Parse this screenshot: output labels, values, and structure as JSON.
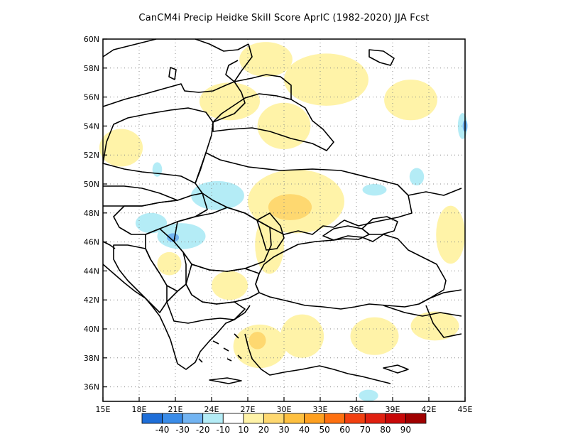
{
  "title": "CanCM4i Precip Heidke Skill Score AprIC (1982-2020) JJA Fcst",
  "map": {
    "lon_range": [
      15,
      45
    ],
    "lat_range": [
      35,
      60
    ],
    "lon_ticks": [
      "15E",
      "18E",
      "21E",
      "24E",
      "27E",
      "30E",
      "33E",
      "36E",
      "39E",
      "42E",
      "45E"
    ],
    "lat_ticks": [
      "60N",
      "58N",
      "56N",
      "54N",
      "52N",
      "50N",
      "48N",
      "46N",
      "44N",
      "42N",
      "40N",
      "38N",
      "36N"
    ],
    "regions": [
      {
        "cat": 1,
        "lon": 28.5,
        "lat": 58.6,
        "rx": 2.2,
        "ry": 1.2
      },
      {
        "cat": 1,
        "lon": 25.5,
        "lat": 55.7,
        "rx": 2.5,
        "ry": 1.3
      },
      {
        "cat": 1,
        "lon": 33.5,
        "lat": 57.2,
        "rx": 3.5,
        "ry": 1.8
      },
      {
        "cat": 1,
        "lon": 40.5,
        "lat": 55.8,
        "rx": 2.2,
        "ry": 1.4
      },
      {
        "cat": 1,
        "lon": 30.0,
        "lat": 54.0,
        "rx": 2.2,
        "ry": 1.6
      },
      {
        "cat": 1,
        "lon": 16.5,
        "lat": 52.5,
        "rx": 1.8,
        "ry": 1.3
      },
      {
        "cat": 1,
        "lon": 31.0,
        "lat": 48.8,
        "rx": 4.0,
        "ry": 2.2
      },
      {
        "cat": 2,
        "lon": 30.5,
        "lat": 48.4,
        "rx": 1.8,
        "ry": 0.9
      },
      {
        "cat": 1,
        "lon": 28.8,
        "lat": 45.8,
        "rx": 1.2,
        "ry": 2.0
      },
      {
        "cat": 1,
        "lon": 25.5,
        "lat": 43.0,
        "rx": 1.5,
        "ry": 1.0
      },
      {
        "cat": 1,
        "lon": 28.0,
        "lat": 38.8,
        "rx": 2.2,
        "ry": 1.5
      },
      {
        "cat": 2,
        "lon": 27.8,
        "lat": 39.2,
        "rx": 0.7,
        "ry": 0.6
      },
      {
        "cat": 1,
        "lon": 31.5,
        "lat": 39.5,
        "rx": 1.8,
        "ry": 1.5
      },
      {
        "cat": 1,
        "lon": 37.5,
        "lat": 39.5,
        "rx": 2.0,
        "ry": 1.3
      },
      {
        "cat": 1,
        "lon": 42.5,
        "lat": 40.2,
        "rx": 2.0,
        "ry": 1.0
      },
      {
        "cat": 1,
        "lon": 43.8,
        "lat": 46.5,
        "rx": 1.2,
        "ry": 2.0
      },
      {
        "cat": 1,
        "lon": 20.5,
        "lat": 44.5,
        "rx": 1.0,
        "ry": 0.8
      },
      {
        "cat": -1,
        "lon": 24.5,
        "lat": 49.2,
        "rx": 2.2,
        "ry": 1.0
      },
      {
        "cat": -1,
        "lon": 21.5,
        "lat": 46.4,
        "rx": 2.0,
        "ry": 0.9
      },
      {
        "cat": -1,
        "lon": 19.0,
        "lat": 47.3,
        "rx": 1.3,
        "ry": 0.7
      },
      {
        "cat": -2,
        "lon": 20.8,
        "lat": 46.3,
        "rx": 0.5,
        "ry": 0.3
      },
      {
        "cat": -1,
        "lon": 37.5,
        "lat": 49.6,
        "rx": 1.0,
        "ry": 0.4
      },
      {
        "cat": -1,
        "lon": 41.0,
        "lat": 50.5,
        "rx": 0.6,
        "ry": 0.6
      },
      {
        "cat": -1,
        "lon": 44.8,
        "lat": 54.0,
        "rx": 0.4,
        "ry": 0.9
      },
      {
        "cat": -2,
        "lon": 45.0,
        "lat": 54.0,
        "rx": 0.2,
        "ry": 0.4
      },
      {
        "cat": -1,
        "lon": 19.5,
        "lat": 51.0,
        "rx": 0.4,
        "ry": 0.5
      },
      {
        "cat": -1,
        "lon": 37.0,
        "lat": 35.4,
        "rx": 0.8,
        "ry": 0.4
      }
    ]
  },
  "colorbar": {
    "colors": [
      "#1e6ed8",
      "#3a8ce8",
      "#72b4f2",
      "#b4ecf6",
      "#ffffff",
      "#fff3a8",
      "#fed870",
      "#fec040",
      "#fea020",
      "#fe7010",
      "#f24010",
      "#e02010",
      "#c80808",
      "#a00000"
    ],
    "labels": [
      "-40",
      "-30",
      "-20",
      "-10",
      "10",
      "20",
      "30",
      "40",
      "50",
      "60",
      "70",
      "80",
      "90"
    ]
  }
}
